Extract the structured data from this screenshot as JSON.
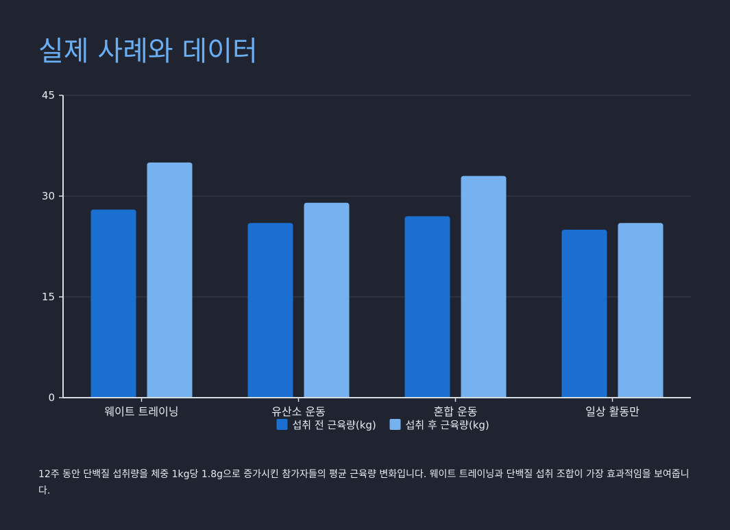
{
  "title": "실제 사례와 데이터",
  "caption": "12주 동안 단백질 섭취량을 체중 1kg당 1.8g으로 증가시킨 참가자들의 평균 근육량 변화입니다. 웨이트 트레이닝과 단백질 섭취 조합이 가장 효과적임을 보여줍니다.",
  "colors": {
    "background": "#1f2430",
    "title": "#6aaef4",
    "series_before": "#1a6fd1",
    "series_after": "#76b1f0",
    "grid": "#3a404c",
    "axis": "#d8dce3"
  },
  "chart_data": {
    "type": "bar",
    "categories": [
      "웨이트 트레이닝",
      "유산소 운동",
      "혼합 운동",
      "일상 활동만"
    ],
    "series": [
      {
        "name": "섭취 전 근육량(kg)",
        "values": [
          28,
          26,
          27,
          25
        ]
      },
      {
        "name": "섭취 후 근육량(kg)",
        "values": [
          35,
          29,
          33,
          26
        ]
      }
    ],
    "ylim": [
      0,
      45
    ],
    "yticks": [
      0,
      15,
      30,
      45
    ],
    "grid": true,
    "legend": "bottom-center"
  }
}
